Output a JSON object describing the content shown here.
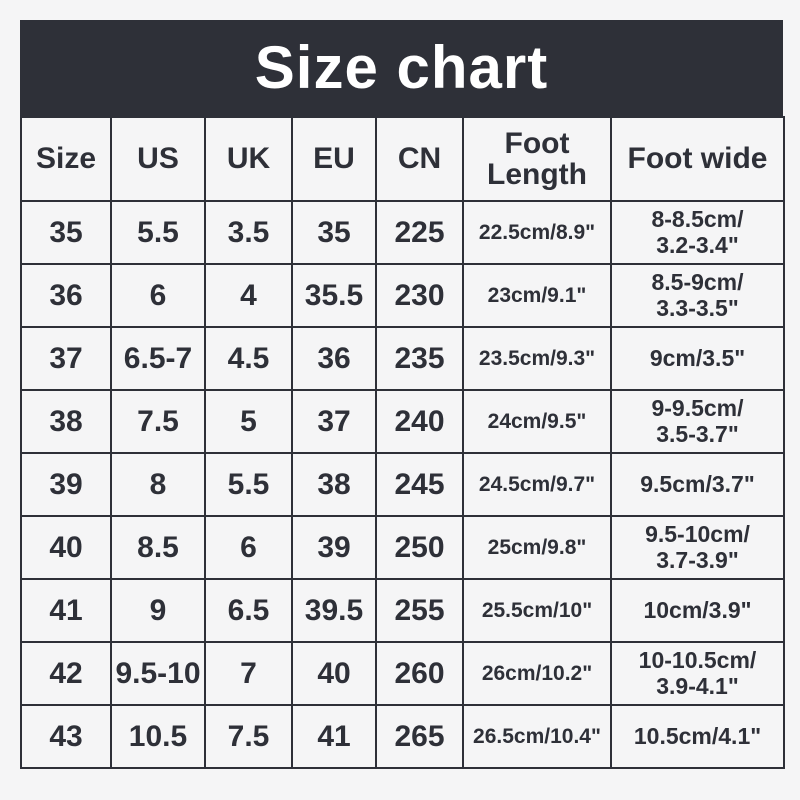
{
  "banner": {
    "title": "Size chart"
  },
  "colors": {
    "background": "#f5f5f6",
    "dark": "#2e3038",
    "banner_text": "#ffffff"
  },
  "chart_data": {
    "type": "table",
    "title": "Size chart",
    "columns": [
      "Size",
      "US",
      "UK",
      "EU",
      "CN",
      "Foot Length",
      "Foot wide"
    ],
    "rows": [
      [
        "35",
        "5.5",
        "3.5",
        "35",
        "225",
        "22.5cm/8.9\"",
        "8-8.5cm/\n3.2-3.4\""
      ],
      [
        "36",
        "6",
        "4",
        "35.5",
        "230",
        "23cm/9.1\"",
        "8.5-9cm/\n3.3-3.5\""
      ],
      [
        "37",
        "6.5-7",
        "4.5",
        "36",
        "235",
        "23.5cm/9.3\"",
        "9cm/3.5\""
      ],
      [
        "38",
        "7.5",
        "5",
        "37",
        "240",
        "24cm/9.5\"",
        "9-9.5cm/\n3.5-3.7\""
      ],
      [
        "39",
        "8",
        "5.5",
        "38",
        "245",
        "24.5cm/9.7\"",
        "9.5cm/3.7\""
      ],
      [
        "40",
        "8.5",
        "6",
        "39",
        "250",
        "25cm/9.8\"",
        "9.5-10cm/\n3.7-3.9\""
      ],
      [
        "41",
        "9",
        "6.5",
        "39.5",
        "255",
        "25.5cm/10\"",
        "10cm/3.9\""
      ],
      [
        "42",
        "9.5-10",
        "7",
        "40",
        "260",
        "26cm/10.2\"",
        "10-10.5cm/\n3.9-4.1\""
      ],
      [
        "43",
        "10.5",
        "7.5",
        "41",
        "265",
        "26.5cm/10.4\"",
        "10.5cm/4.1\""
      ]
    ]
  }
}
